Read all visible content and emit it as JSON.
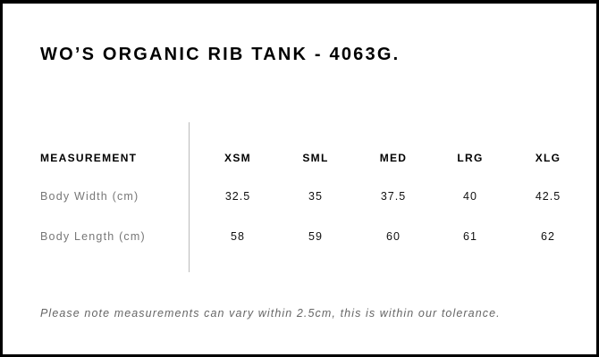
{
  "title": "WO’S ORGANIC RIB TANK - 4063G.",
  "table": {
    "header_label": "MEASUREMENT",
    "sizes": [
      "XSM",
      "SML",
      "MED",
      "LRG",
      "XLG"
    ],
    "rows": [
      {
        "label": "Body Width (cm)",
        "values": [
          "32.5",
          "35",
          "37.5",
          "40",
          "42.5"
        ]
      },
      {
        "label": "Body Length (cm)",
        "values": [
          "58",
          "59",
          "60",
          "61",
          "62"
        ]
      }
    ]
  },
  "note": "Please note measurements can vary within 2.5cm, this is within our tolerance."
}
